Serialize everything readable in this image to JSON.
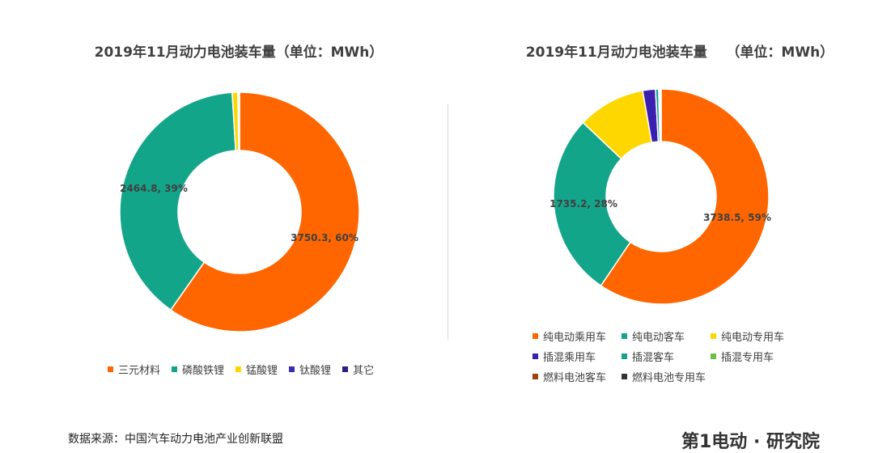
{
  "source": "数据来源：中国汽车动力电池产业创新联盟",
  "logo_text": "第1电动 · 研究院",
  "chart_data": [
    {
      "type": "pie",
      "title": "2019年11月动力电池装车量（单位：MWh）",
      "donut": true,
      "categories": [
        "三元材料",
        "磷酸铁锂",
        "锰酸锂",
        "钛酸锂",
        "其它"
      ],
      "values": [
        3750.3,
        2464.8,
        48,
        8,
        6
      ],
      "colors": [
        "#FF6600",
        "#13A58A",
        "#FFD700",
        "#3A2CB0",
        "#2A1E8A"
      ],
      "data_labels": [
        "3750.3, 60%",
        "2464.8, 39%",
        "",
        "",
        ""
      ],
      "legend_position": "bottom"
    },
    {
      "type": "pie",
      "title": "2019年11月动力电池装车量    （单位：MWh）",
      "donut": true,
      "categories": [
        "纯电动乘用车",
        "纯电动客车",
        "纯电动专用车",
        "插混乘用车",
        "插混客车",
        "插混专用车",
        "燃料电池客车",
        "燃料电池专用车"
      ],
      "values": [
        3738.5,
        1735.2,
        640,
        120,
        30,
        5,
        10,
        8
      ],
      "colors": [
        "#FF6600",
        "#13A58A",
        "#FFD700",
        "#3A1FB0",
        "#17A08E",
        "#6DBE45",
        "#A0420F",
        "#333333"
      ],
      "data_labels": [
        "3738.5, 59%",
        "1735.2, 28%",
        "",
        "",
        "",
        "",
        "",
        ""
      ],
      "legend_position": "bottom"
    }
  ]
}
